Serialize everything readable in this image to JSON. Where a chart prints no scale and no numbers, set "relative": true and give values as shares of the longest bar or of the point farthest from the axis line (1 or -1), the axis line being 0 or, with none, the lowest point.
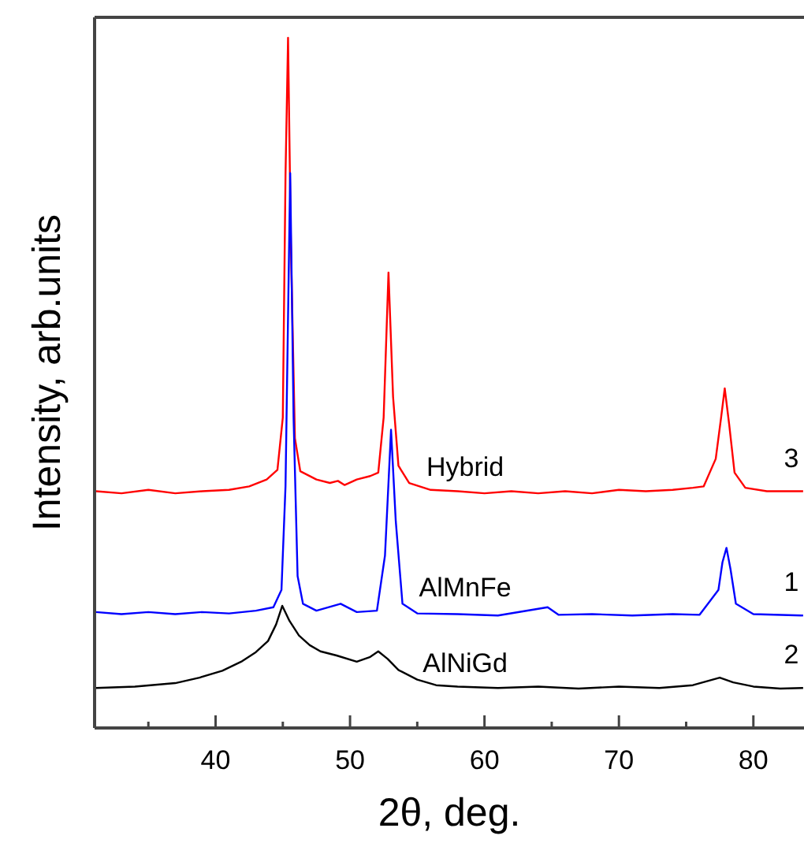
{
  "chart_data": {
    "type": "line",
    "relative": true,
    "xlabel": "2θ, deg.",
    "ylabel": "Intensity, arb.units",
    "xlim": [
      31,
      84
    ],
    "xticks": [
      {
        "value": 35,
        "label": null
      },
      40,
      {
        "value": 45,
        "label": null
      },
      50,
      {
        "value": 55,
        "label": null
      },
      60,
      {
        "value": 65,
        "label": null
      },
      70,
      {
        "value": 75,
        "label": null
      },
      80
    ],
    "tick_labels": "x",
    "grid": false,
    "marker": "none",
    "line_style": "solid",
    "series": [
      {
        "name": "Hybrid",
        "color": "#ff0000",
        "x": [
          31.1,
          33,
          35,
          37,
          39,
          41,
          42.5,
          43.8,
          44.6,
          45.0,
          45.2,
          45.39,
          45.6,
          45.9,
          46.3,
          47.5,
          48.5,
          49.1,
          49.6,
          50.5,
          51.5,
          52.1,
          52.5,
          52.86,
          53.2,
          53.6,
          54.4,
          56,
          58,
          60,
          62,
          64,
          66,
          68,
          70,
          72,
          74,
          75.5,
          76.3,
          77.2,
          77.6,
          77.87,
          78.2,
          78.6,
          79.4,
          81,
          83.7
        ],
        "values": [
          0.343,
          0.34,
          0.345,
          0.34,
          0.343,
          0.345,
          0.35,
          0.36,
          0.374,
          0.45,
          0.8,
          1.0,
          0.7,
          0.42,
          0.372,
          0.36,
          0.355,
          0.358,
          0.352,
          0.36,
          0.365,
          0.37,
          0.45,
          0.66,
          0.48,
          0.38,
          0.355,
          0.345,
          0.343,
          0.34,
          0.343,
          0.34,
          0.343,
          0.34,
          0.345,
          0.343,
          0.345,
          0.348,
          0.35,
          0.39,
          0.45,
          0.492,
          0.44,
          0.37,
          0.348,
          0.343,
          0.343
        ]
      },
      {
        "name": "AlMnFe",
        "color": "#0000ff",
        "x": [
          31.1,
          33,
          35,
          37,
          39,
          41,
          43,
          44.3,
          44.9,
          45.2,
          45.55,
          45.8,
          46.1,
          46.5,
          47.5,
          49.3,
          50.5,
          52,
          52.6,
          53.05,
          53.4,
          53.9,
          55,
          58,
          61,
          64.7,
          65.5,
          68,
          71,
          74,
          76,
          77.4,
          77.7,
          78.0,
          78.3,
          78.7,
          80,
          83.7
        ],
        "values": [
          0.168,
          0.165,
          0.168,
          0.165,
          0.168,
          0.166,
          0.17,
          0.175,
          0.2,
          0.35,
          0.804,
          0.45,
          0.22,
          0.18,
          0.17,
          0.18,
          0.168,
          0.17,
          0.25,
          0.432,
          0.3,
          0.18,
          0.166,
          0.165,
          0.163,
          0.175,
          0.164,
          0.165,
          0.163,
          0.165,
          0.164,
          0.2,
          0.24,
          0.261,
          0.23,
          0.18,
          0.165,
          0.163
        ]
      },
      {
        "name": "AlNiGd",
        "color": "#000000",
        "x": [
          31.1,
          34,
          37,
          38.8,
          40.5,
          41.9,
          43,
          43.9,
          44.5,
          44.96,
          45.5,
          46.2,
          47,
          47.8,
          49,
          50.5,
          51.5,
          52.1,
          52.8,
          53.6,
          55,
          56.4,
          58,
          61,
          64,
          67,
          70,
          73,
          75.5,
          77.5,
          78.5,
          80,
          82,
          83.7
        ],
        "values": [
          0.058,
          0.06,
          0.065,
          0.073,
          0.083,
          0.096,
          0.11,
          0.126,
          0.15,
          0.177,
          0.155,
          0.134,
          0.12,
          0.111,
          0.105,
          0.096,
          0.103,
          0.111,
          0.1,
          0.084,
          0.07,
          0.062,
          0.06,
          0.058,
          0.06,
          0.057,
          0.06,
          0.058,
          0.062,
          0.073,
          0.066,
          0.06,
          0.057,
          0.058
        ]
      }
    ],
    "annotations": [
      "3",
      "1",
      "2"
    ]
  }
}
